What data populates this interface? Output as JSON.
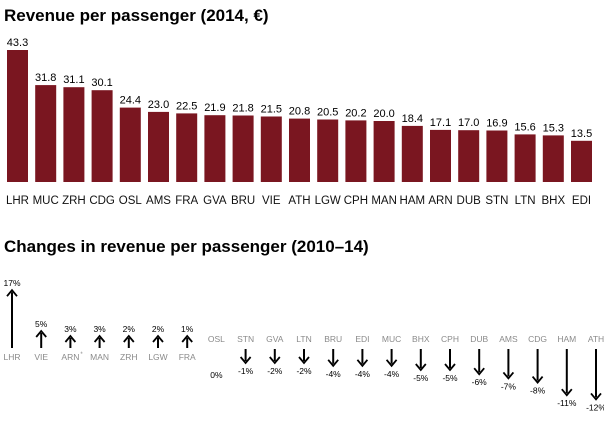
{
  "colors": {
    "bar": "#7a1620",
    "arrow": "#000000",
    "muted": "#8a8a8a"
  },
  "chart_data": [
    {
      "type": "bar",
      "title": "Revenue per passenger (2014, €)",
      "categories": [
        "LHR",
        "MUC",
        "ZRH",
        "CDG",
        "OSL",
        "AMS",
        "FRA",
        "GVA",
        "BRU",
        "VIE",
        "ATH",
        "LGW",
        "CPH",
        "MAN",
        "HAM",
        "ARN",
        "DUB",
        "STN",
        "LTN",
        "BHX",
        "EDI"
      ],
      "values": [
        43.3,
        31.8,
        31.1,
        30.1,
        24.4,
        23.0,
        22.5,
        21.9,
        21.8,
        21.5,
        20.8,
        20.5,
        20.2,
        20.0,
        18.4,
        17.1,
        17.0,
        16.9,
        15.6,
        15.3,
        13.5
      ],
      "value_labels": [
        "43.3",
        "31.8",
        "31.1",
        "30.1",
        "24.4",
        "23.0",
        "22.5",
        "21.9",
        "21.8",
        "21.5",
        "20.8",
        "20.5",
        "20.2",
        "20.0",
        "18.4",
        "17.1",
        "17.0",
        "16.9",
        "15.6",
        "15.3",
        "13.5"
      ],
      "ylim": [
        0,
        43.3
      ]
    },
    {
      "type": "bar",
      "title": "Changes in revenue per passenger (2010–14)",
      "categories": [
        "LHR",
        "VIE",
        "ARN",
        "MAN",
        "ZRH",
        "LGW",
        "FRA",
        "OSL",
        "STN",
        "GVA",
        "LTN",
        "BRU",
        "EDI",
        "MUC",
        "BHX",
        "CPH",
        "DUB",
        "AMS",
        "CDG",
        "HAM",
        "ATH"
      ],
      "category_suffix": [
        "",
        "",
        "*",
        "",
        "",
        "",
        "",
        "",
        "",
        "",
        "",
        "",
        "",
        "",
        "",
        "",
        "",
        "",
        "",
        "",
        ""
      ],
      "values": [
        17,
        5,
        3,
        3,
        2,
        2,
        1,
        0,
        -1,
        -2,
        -2,
        -4,
        -4,
        -4,
        -5,
        -5,
        -6,
        -7,
        -8,
        -11,
        -12
      ],
      "value_labels": [
        "17%",
        "5%",
        "3%",
        "3%",
        "2%",
        "2%",
        "1%",
        "0%",
        "-1%",
        "-2%",
        "-2%",
        "-4%",
        "-4%",
        "-4%",
        "-5%",
        "-5%",
        "-6%",
        "-7%",
        "-8%",
        "-11%",
        "-12%"
      ],
      "ylim": [
        -12,
        17
      ]
    }
  ]
}
